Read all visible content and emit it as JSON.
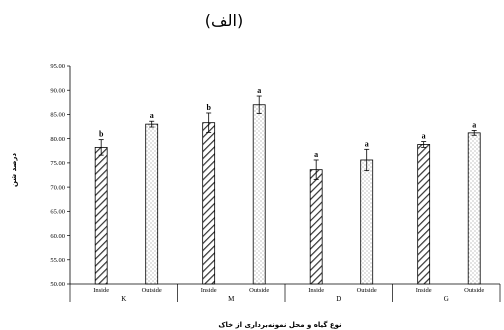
{
  "chart_data": {
    "type": "bar",
    "title": "(الف)",
    "xlabel": "نوع گیاه و محل نمونه‌برداری از خاک",
    "ylabel": "درصد شن",
    "ylim": [
      50,
      95
    ],
    "yticks": [
      "50.00",
      "55.00",
      "60.00",
      "65.00",
      "70.00",
      "75.00",
      "80.00",
      "85.00",
      "90.00",
      "95.00"
    ],
    "groups": [
      "K",
      "M",
      "D",
      "G"
    ],
    "subcategories": [
      "Inside",
      "Outside"
    ],
    "grid": false,
    "bars": [
      {
        "group": "K",
        "sub": "Inside",
        "value": 78.2,
        "error": 1.6,
        "letter": "b"
      },
      {
        "group": "K",
        "sub": "Outside",
        "value": 83.0,
        "error": 0.6,
        "letter": "a"
      },
      {
        "group": "M",
        "sub": "Inside",
        "value": 83.3,
        "error": 2.0,
        "letter": "b"
      },
      {
        "group": "M",
        "sub": "Outside",
        "value": 87.0,
        "error": 1.8,
        "letter": "a"
      },
      {
        "group": "D",
        "sub": "Inside",
        "value": 73.6,
        "error": 2.0,
        "letter": "a"
      },
      {
        "group": "D",
        "sub": "Outside",
        "value": 75.6,
        "error": 2.2,
        "letter": "a"
      },
      {
        "group": "G",
        "sub": "Inside",
        "value": 78.8,
        "error": 0.6,
        "letter": "a"
      },
      {
        "group": "G",
        "sub": "Outside",
        "value": 81.2,
        "error": 0.5,
        "letter": "a"
      }
    ]
  }
}
